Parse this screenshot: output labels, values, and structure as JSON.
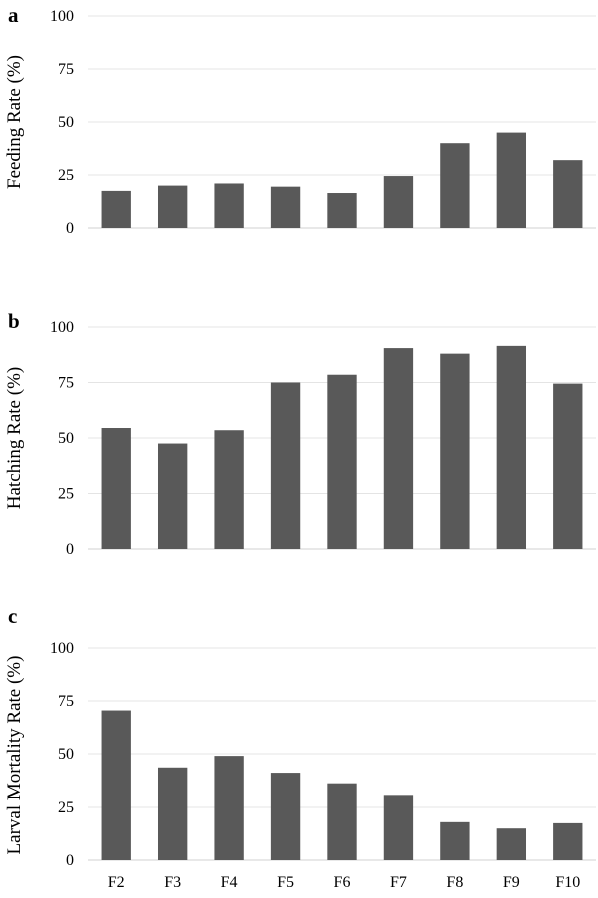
{
  "chart_data": [
    {
      "type": "bar",
      "panel_label": "a",
      "ylabel": "Feeding Rate (%)",
      "categories": [
        "F2",
        "F3",
        "F4",
        "F5",
        "F6",
        "F7",
        "F8",
        "F9",
        "F10"
      ],
      "values": [
        17.5,
        20,
        21,
        19.5,
        16.5,
        24.5,
        40,
        45,
        32
      ],
      "ylim": [
        0,
        100
      ],
      "yticks": [
        0,
        25,
        50,
        75,
        100
      ],
      "grid": true,
      "show_category_labels": false,
      "bar_color": "#595959"
    },
    {
      "type": "bar",
      "panel_label": "b",
      "ylabel": "Hatching Rate (%)",
      "categories": [
        "F2",
        "F3",
        "F4",
        "F5",
        "F6",
        "F7",
        "F8",
        "F9",
        "F10"
      ],
      "values": [
        54.5,
        47.5,
        53.5,
        75,
        78.5,
        90.5,
        88,
        91.5,
        74.5
      ],
      "ylim": [
        0,
        100
      ],
      "yticks": [
        0,
        25,
        50,
        75,
        100
      ],
      "grid": true,
      "show_category_labels": false,
      "bar_color": "#595959"
    },
    {
      "type": "bar",
      "panel_label": "c",
      "ylabel": "Larval Mortality Rate (%)",
      "categories": [
        "F2",
        "F3",
        "F4",
        "F5",
        "F6",
        "F7",
        "F8",
        "F9",
        "F10"
      ],
      "values": [
        70.5,
        43.5,
        49,
        41,
        36,
        30.5,
        18,
        15,
        17.5
      ],
      "ylim": [
        0,
        100
      ],
      "yticks": [
        0,
        25,
        50,
        75,
        100
      ],
      "grid": true,
      "show_category_labels": true,
      "bar_color": "#595959"
    }
  ]
}
